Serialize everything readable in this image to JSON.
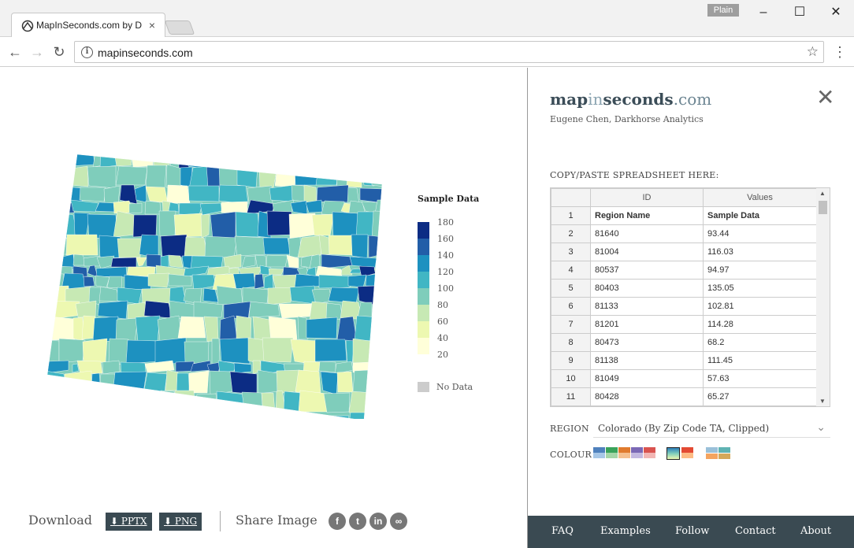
{
  "browser": {
    "tab_title": "MapInSeconds.com by D",
    "tab_close": "×",
    "profile_label": "Plain",
    "url": "mapinseconds.com",
    "window_controls": {
      "minimize": "–",
      "maximize": "☐",
      "close": "✕"
    },
    "nav": {
      "back": "←",
      "forward": "→",
      "reload": "↻",
      "star": "☆",
      "menu": "⋮"
    }
  },
  "legend": {
    "title": "Sample Data",
    "items": [
      {
        "label": "180",
        "color": "#0c2c84"
      },
      {
        "label": "160",
        "color": "#225ea8"
      },
      {
        "label": "140",
        "color": "#1d91c0"
      },
      {
        "label": "120",
        "color": "#41b6c4"
      },
      {
        "label": "100",
        "color": "#7fcdbb"
      },
      {
        "label": "80",
        "color": "#c7e9b4"
      },
      {
        "label": "60",
        "color": "#edf8b1"
      },
      {
        "label": "40",
        "color": "#ffffd9"
      },
      {
        "label": "20",
        "color": "#ffffff"
      }
    ],
    "no_data_label": "No Data",
    "no_data_color": "#cccccc"
  },
  "bottom": {
    "download_label": "Download",
    "pptx_label": "⬇ PPTX",
    "png_label": "⬇ PNG",
    "share_label": "Share Image",
    "share_icons": [
      "facebook-icon",
      "twitter-icon",
      "linkedin-icon",
      "link-icon"
    ]
  },
  "panel": {
    "logo_map": "map",
    "logo_in": "in",
    "logo_seconds": "seconds",
    "logo_tld": ".com",
    "byline": "Eugene Chen, Darkhorse Analytics",
    "close": "✕",
    "paste_label": "COPY/PASTE SPREADSHEET HERE:",
    "sheet": {
      "col_headers": [
        "ID",
        "Values"
      ],
      "rows": [
        {
          "n": "1",
          "id": "Region Name",
          "value": "Sample Data"
        },
        {
          "n": "2",
          "id": "81640",
          "value": "93.44"
        },
        {
          "n": "3",
          "id": "81004",
          "value": "116.03"
        },
        {
          "n": "4",
          "id": "80537",
          "value": "94.97"
        },
        {
          "n": "5",
          "id": "80403",
          "value": "135.05"
        },
        {
          "n": "6",
          "id": "81133",
          "value": "102.81"
        },
        {
          "n": "7",
          "id": "81201",
          "value": "114.28"
        },
        {
          "n": "8",
          "id": "80473",
          "value": "68.2"
        },
        {
          "n": "9",
          "id": "81138",
          "value": "111.45"
        },
        {
          "n": "10",
          "id": "81049",
          "value": "57.63"
        },
        {
          "n": "11",
          "id": "80428",
          "value": "65.27"
        }
      ]
    },
    "region_label": "REGION",
    "region_value": "Colorado (By Zip Code TA, Clipped)",
    "colour_label": "COLOUR"
  },
  "footer": {
    "faq": "FAQ",
    "examples": "Examples",
    "follow": "Follow",
    "contact": "Contact",
    "about": "About"
  }
}
